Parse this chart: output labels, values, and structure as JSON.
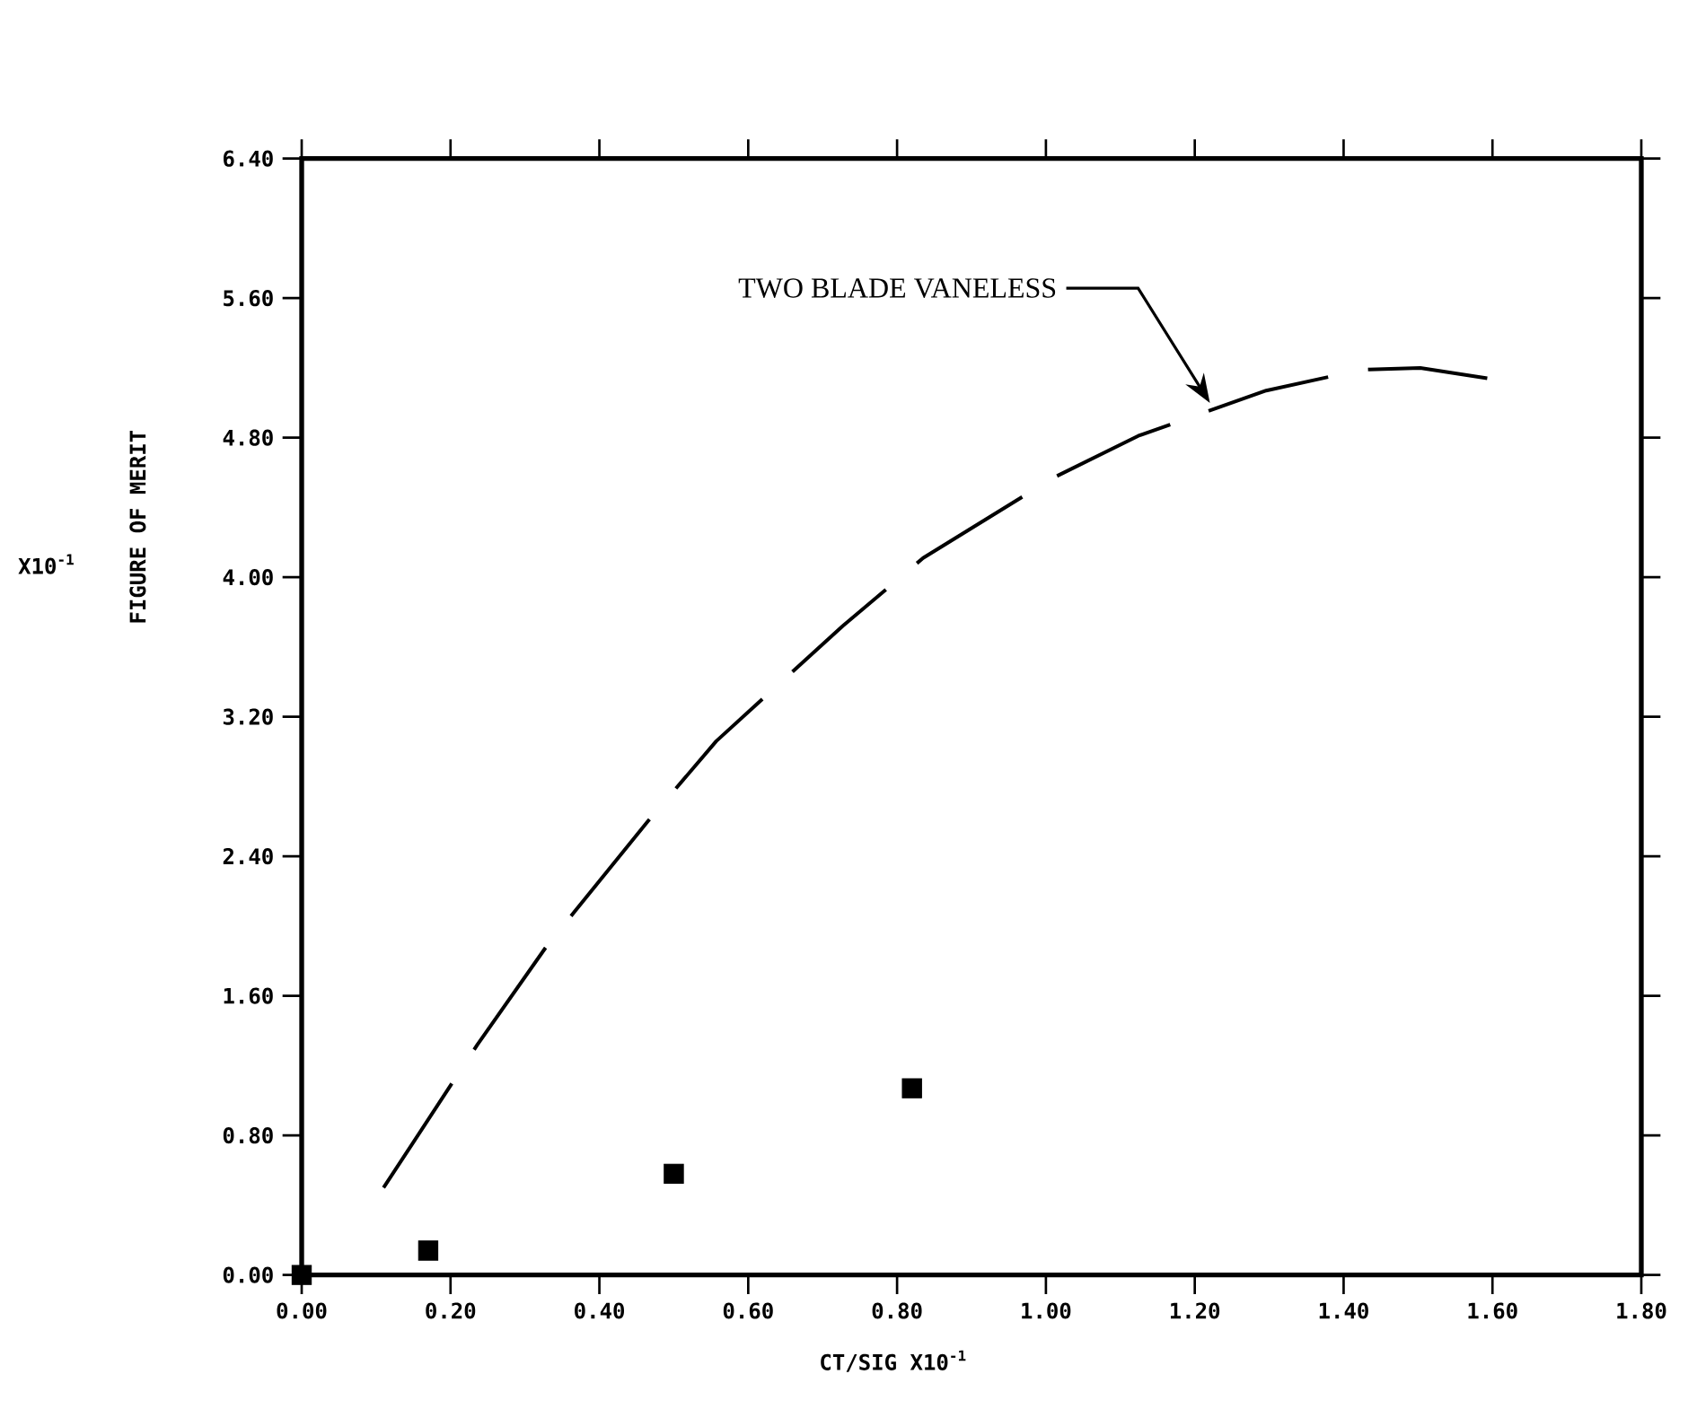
{
  "chart_data": {
    "type": "line",
    "xlabel": "CT/SIG X10$^{-1}$",
    "ylabel": "FIGURE OF MERIT",
    "annotations": [
      "X10$^{-1}$",
      "TWO BLADE VANELESS"
    ],
    "series": [
      {
        "type": "line",
        "color": "#000000",
        "line_style": "dashed",
        "x": [
          0.11,
          0.236,
          0.33,
          0.465,
          0.557,
          0.727,
          0.835,
          1.01,
          1.124,
          1.296,
          1.425,
          1.503,
          1.593
        ],
        "values": [
          0.5,
          1.32,
          1.89,
          2.6,
          3.06,
          3.72,
          4.11,
          4.57,
          4.81,
          5.07,
          5.19,
          5.2,
          5.14
        ]
      },
      {
        "type": "scatter",
        "color": "#000000",
        "marker": "square",
        "x": [
          0.0,
          0.17,
          0.5,
          0.82
        ],
        "values": [
          0.0,
          0.14,
          0.58,
          1.07
        ]
      }
    ],
    "xlim": [
      0,
      1.8
    ],
    "ylim": [
      0,
      6.4
    ],
    "xticks": [
      {
        "value": 0,
        "label": "0.00"
      },
      {
        "value": 0.2,
        "label": "0.20"
      },
      {
        "value": 0.4,
        "label": "0.40"
      },
      {
        "value": 0.6,
        "label": "0.60"
      },
      {
        "value": 0.8,
        "label": "0.80"
      },
      {
        "value": 1.0,
        "label": "1.00"
      },
      {
        "value": 1.2,
        "label": "1.20"
      },
      {
        "value": 1.4,
        "label": "1.40"
      },
      {
        "value": 1.6,
        "label": "1.60"
      },
      {
        "value": 1.8,
        "label": "1.80"
      }
    ],
    "yticks": [
      {
        "value": 0,
        "label": "0.00"
      },
      {
        "value": 0.8,
        "label": "0.80"
      },
      {
        "value": 1.6,
        "label": "1.60"
      },
      {
        "value": 2.4,
        "label": "2.40"
      },
      {
        "value": 3.2,
        "label": "3.20"
      },
      {
        "value": 4.0,
        "label": "4.00"
      },
      {
        "value": 4.8,
        "label": "4.80"
      },
      {
        "value": 5.6,
        "label": "5.60"
      },
      {
        "value": 6.4,
        "label": "6.40"
      }
    ]
  }
}
